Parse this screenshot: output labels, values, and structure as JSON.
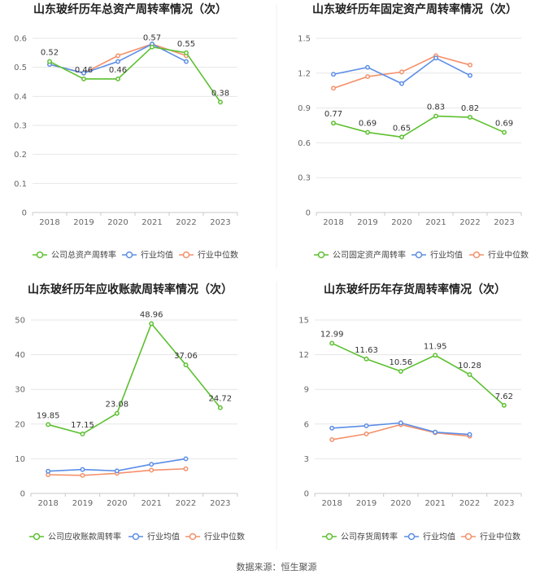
{
  "source": "数据来源：恒生聚源",
  "legend_labels": {
    "industry_avg": "行业均值",
    "industry_median": "行业中位数"
  },
  "colors": {
    "company": "#5cc02f",
    "industry_avg": "#5b8de6",
    "industry_median": "#f4906a",
    "grid": "#e6e6e6",
    "axis": "#c8c8c8"
  },
  "chart_data": [
    {
      "type": "line",
      "title": "山东玻纤历年总资产周转率情况（次）",
      "categories": [
        "2018",
        "2019",
        "2020",
        "2021",
        "2022",
        "2023"
      ],
      "ylim": [
        0,
        0.6
      ],
      "yticks": [
        "0",
        "0.1",
        "0.2",
        "0.3",
        "0.4",
        "0.5",
        "0.6"
      ],
      "series": [
        {
          "name": "公司总资产周转率",
          "values": [
            0.52,
            0.46,
            0.46,
            0.57,
            0.55,
            0.38
          ],
          "labels": [
            "0.52",
            "0.46",
            "0.46",
            "0.57",
            "0.55",
            "0.38"
          ]
        },
        {
          "name": "行业均值",
          "values": [
            0.51,
            0.48,
            0.52,
            0.58,
            0.52,
            null
          ]
        },
        {
          "name": "行业中位数",
          "values": [
            0.51,
            0.48,
            0.54,
            0.58,
            0.54,
            null
          ]
        }
      ]
    },
    {
      "type": "line",
      "title": "山东玻纤历年固定资产周转率情况（次）",
      "categories": [
        "2018",
        "2019",
        "2020",
        "2021",
        "2022",
        "2023"
      ],
      "ylim": [
        0,
        1.5
      ],
      "yticks": [
        "0",
        "0.3",
        "0.6",
        "0.9",
        "1.2",
        "1.5"
      ],
      "series": [
        {
          "name": "公司固定资产周转率",
          "values": [
            0.77,
            0.69,
            0.65,
            0.83,
            0.82,
            0.69
          ],
          "labels": [
            "0.77",
            "0.69",
            "0.65",
            "0.83",
            "0.82",
            "0.69"
          ]
        },
        {
          "name": "行业均值",
          "values": [
            1.19,
            1.25,
            1.11,
            1.33,
            1.18,
            null
          ]
        },
        {
          "name": "行业中位数",
          "values": [
            1.07,
            1.17,
            1.21,
            1.35,
            1.27,
            null
          ]
        }
      ]
    },
    {
      "type": "line",
      "title": "山东玻纤历年应收账款周转率情况（次）",
      "categories": [
        "2018",
        "2019",
        "2020",
        "2021",
        "2022",
        "2023"
      ],
      "ylim": [
        0,
        50
      ],
      "yticks": [
        "0",
        "10",
        "20",
        "30",
        "40",
        "50"
      ],
      "series": [
        {
          "name": "公司应收账款周转率",
          "values": [
            19.85,
            17.15,
            23.08,
            48.96,
            37.06,
            24.72
          ],
          "labels": [
            "19.85",
            "17.15",
            "23.08",
            "48.96",
            "37.06",
            "24.72"
          ]
        },
        {
          "name": "行业均值",
          "values": [
            6.4,
            6.9,
            6.5,
            8.4,
            10.0,
            null
          ]
        },
        {
          "name": "行业中位数",
          "values": [
            5.4,
            5.2,
            5.8,
            6.7,
            7.1,
            null
          ]
        }
      ]
    },
    {
      "type": "line",
      "title": "山东玻纤历年存货周转率情况（次）",
      "categories": [
        "2018",
        "2019",
        "2020",
        "2021",
        "2022",
        "2023"
      ],
      "ylim": [
        0,
        15
      ],
      "yticks": [
        "0",
        "3",
        "6",
        "9",
        "12",
        "15"
      ],
      "series": [
        {
          "name": "公司存货周转率",
          "values": [
            12.99,
            11.63,
            10.56,
            11.95,
            10.28,
            7.62
          ],
          "labels": [
            "12.99",
            "11.63",
            "10.56",
            "11.95",
            "10.28",
            "7.62"
          ]
        },
        {
          "name": "行业均值",
          "values": [
            5.65,
            5.85,
            6.1,
            5.3,
            5.1,
            null
          ]
        },
        {
          "name": "行业中位数",
          "values": [
            4.65,
            5.15,
            5.95,
            5.25,
            4.95,
            null
          ]
        }
      ]
    }
  ]
}
